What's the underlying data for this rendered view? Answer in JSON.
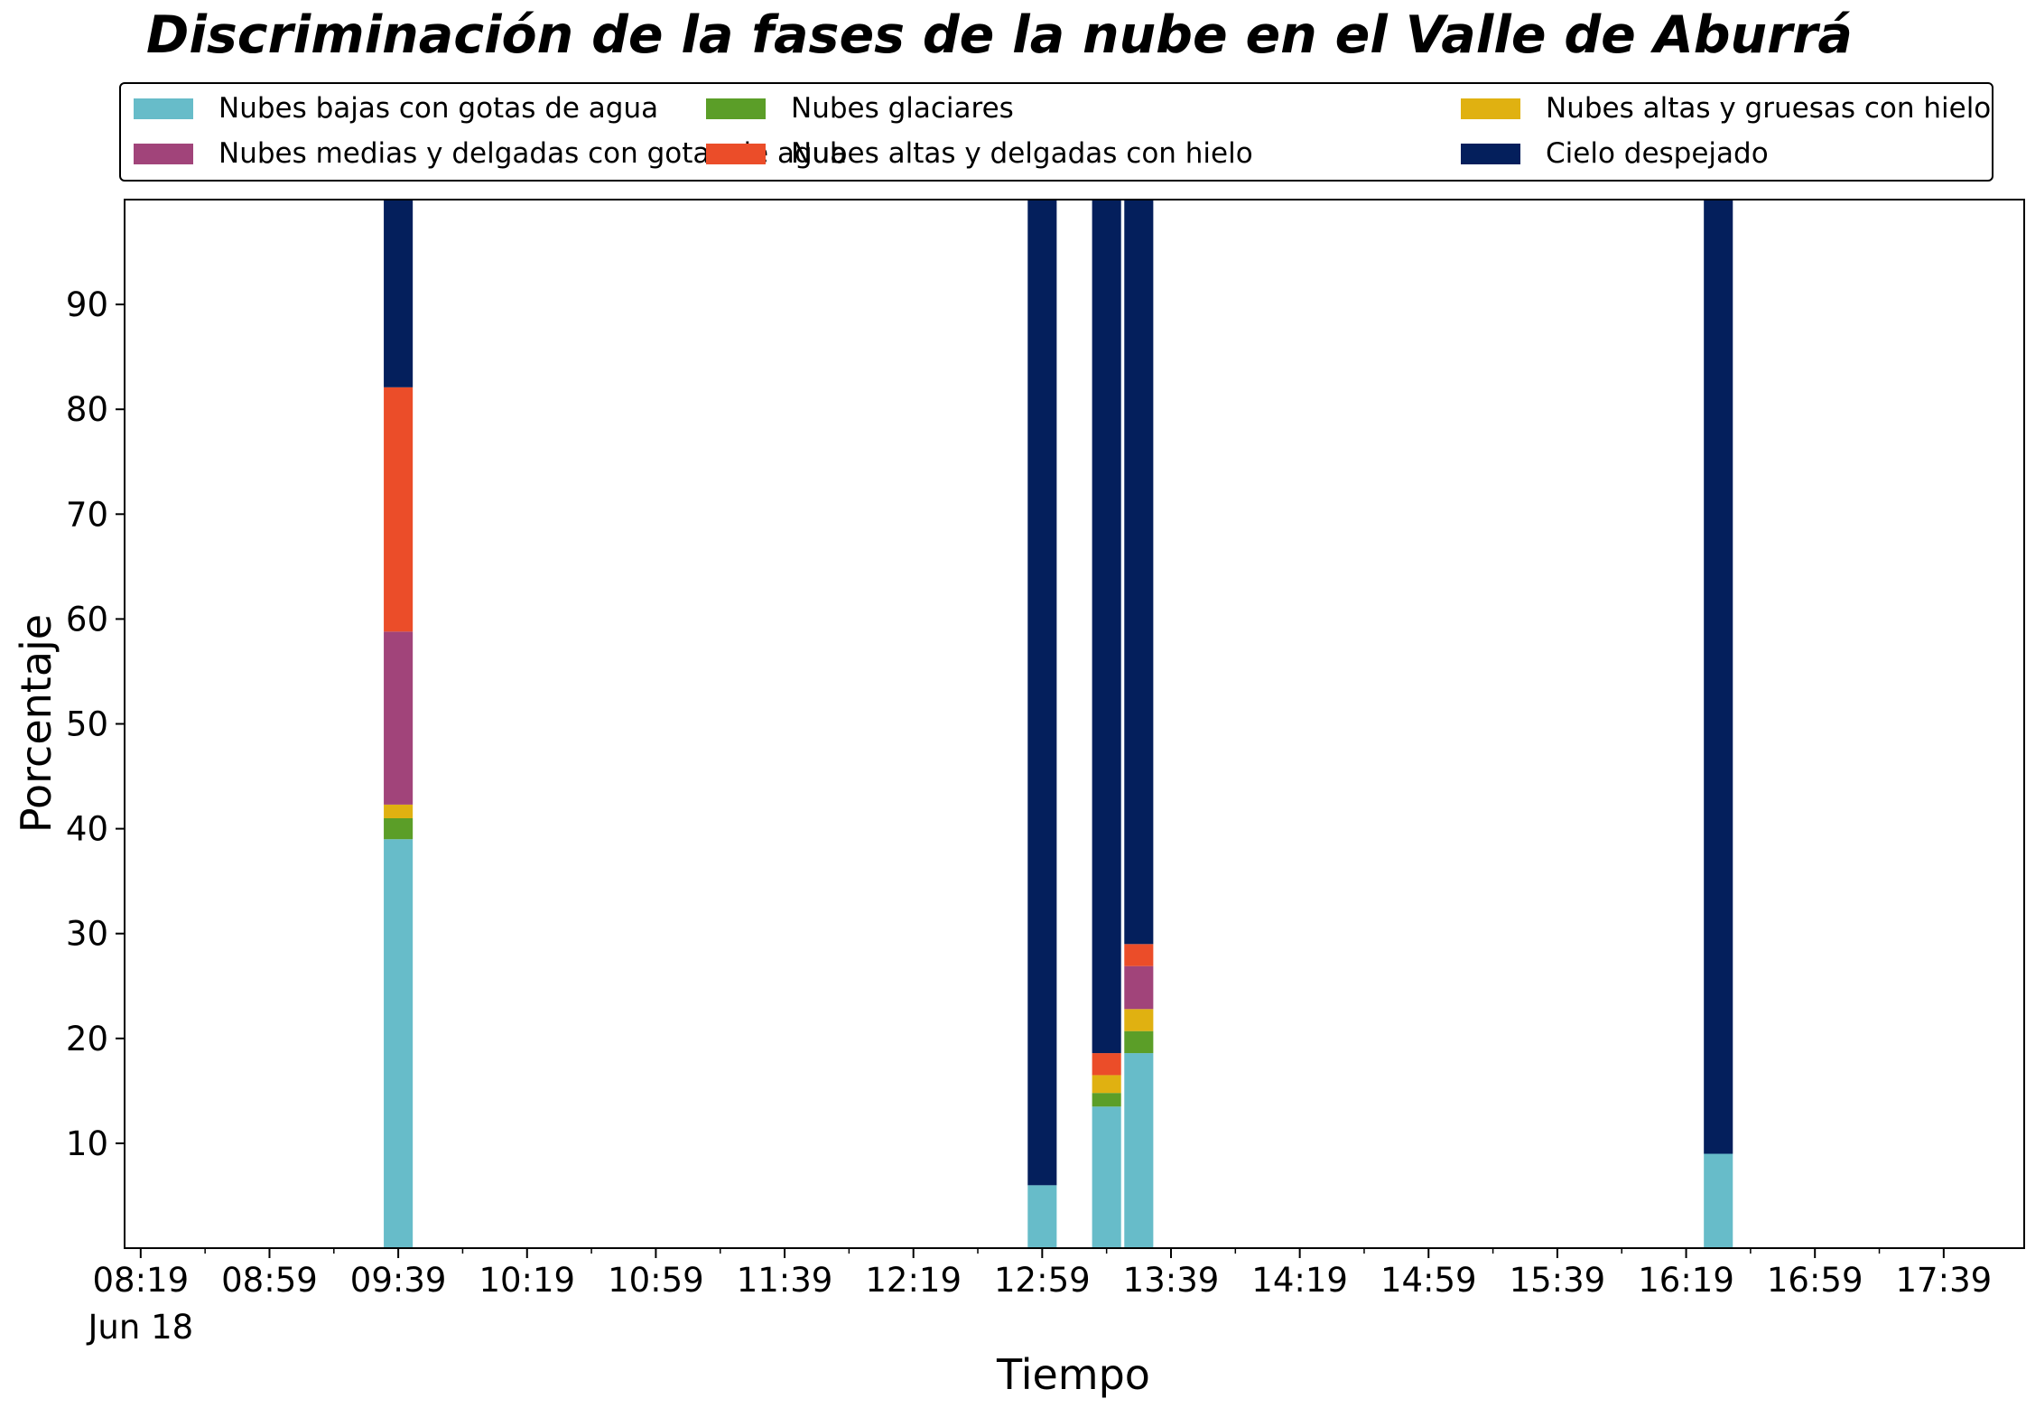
{
  "chart_data": {
    "type": "bar",
    "stacked": true,
    "title": "Discriminación de la fases de la nube en el Valle de Aburrá",
    "xlabel": "Tiempo",
    "ylabel": "Porcentaje",
    "xlim": [
      "08:14",
      "18:04"
    ],
    "ylim": [
      0,
      100
    ],
    "yticks": [
      10,
      20,
      30,
      40,
      50,
      60,
      70,
      80,
      90
    ],
    "xticks": [
      "08:19",
      "08:59",
      "09:39",
      "10:19",
      "10:59",
      "11:39",
      "12:19",
      "12:59",
      "13:39",
      "14:19",
      "14:59",
      "15:39",
      "16:19",
      "16:59",
      "17:39"
    ],
    "xtick_date": "Jun 18",
    "bar_width_minutes": 9,
    "grid": false,
    "legend_position": "top",
    "categories": [
      "09:39",
      "12:59",
      "13:19",
      "13:29",
      "16:29"
    ],
    "series": [
      {
        "name": "Nubes bajas con gotas de agua",
        "color": "#67bcc9",
        "values": [
          39,
          6,
          13.5,
          18.6,
          9
        ]
      },
      {
        "name": "Nubes glaciares",
        "color": "#5b9e28",
        "values": [
          2,
          0,
          1.3,
          2.1,
          0
        ]
      },
      {
        "name": "Nubes altas y gruesas con hielo",
        "color": "#e0b111",
        "values": [
          1.3,
          0,
          1.7,
          2.1,
          0
        ]
      },
      {
        "name": "Nubes medias y delgadas con gotas de agua",
        "color": "#a1447a",
        "values": [
          16.5,
          0,
          0,
          4.1,
          0
        ]
      },
      {
        "name": "Nubes altas y delgadas con hielo",
        "color": "#eb4d29",
        "values": [
          23.3,
          0,
          2.1,
          2.1,
          0
        ]
      },
      {
        "name": "Cielo despejado",
        "color": "#041f5c",
        "values": [
          17.9,
          94,
          81.4,
          71,
          91
        ]
      }
    ]
  }
}
